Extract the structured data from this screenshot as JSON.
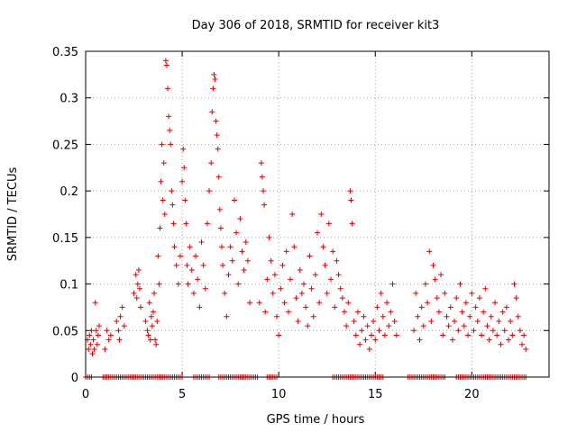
{
  "chart_data": {
    "type": "scatter",
    "title": "Day 306 of 2018, SRMTID for receiver kit3",
    "xlabel": "GPS time / hours",
    "ylabel": "SRMTID / TECUs",
    "xlim": [
      0,
      24
    ],
    "ylim": [
      0,
      0.35
    ],
    "x_ticks": [
      0,
      5,
      10,
      15,
      20
    ],
    "x_tick_labels": [
      "0",
      "5",
      "10",
      "15",
      "20"
    ],
    "y_ticks": [
      0,
      0.05,
      0.1,
      0.15,
      0.2,
      0.25,
      0.3,
      0.35
    ],
    "y_tick_labels": [
      "0",
      "0.05",
      "0.1",
      "0.15",
      "0.2",
      "0.25",
      "0.3",
      "0.35"
    ],
    "grid": true,
    "marker": "plus",
    "color": "#e00000",
    "series": [
      {
        "name": "SRMTID",
        "points": [
          [
            0.1,
            0.04
          ],
          [
            0.15,
            0.03
          ],
          [
            0.2,
            0.045
          ],
          [
            0.25,
            0.035
          ],
          [
            0.3,
            0.05
          ],
          [
            0.35,
            0.025
          ],
          [
            0.4,
            0.04
          ],
          [
            0.45,
            0.03
          ],
          [
            0.5,
            0.08
          ],
          [
            0.55,
            0.05
          ],
          [
            0.6,
            0.035
          ],
          [
            0.65,
            0.045
          ],
          [
            0.7,
            0.055
          ],
          [
            1.0,
            0.03
          ],
          [
            1.1,
            0.05
          ],
          [
            1.2,
            0.04
          ],
          [
            1.3,
            0.045
          ],
          [
            1.6,
            0.06
          ],
          [
            1.7,
            0.05
          ],
          [
            1.8,
            0.065
          ],
          [
            1.9,
            0.075
          ],
          [
            2.0,
            0.055
          ],
          [
            1.75,
            0.04
          ],
          [
            2.5,
            0.09
          ],
          [
            2.6,
            0.11
          ],
          [
            2.65,
            0.085
          ],
          [
            2.7,
            0.1
          ],
          [
            2.75,
            0.115
          ],
          [
            2.8,
            0.095
          ],
          [
            2.85,
            0.075
          ],
          [
            3.1,
            0.06
          ],
          [
            3.2,
            0.05
          ],
          [
            3.25,
            0.045
          ],
          [
            3.3,
            0.08
          ],
          [
            3.35,
            0.04
          ],
          [
            3.4,
            0.065
          ],
          [
            3.45,
            0.055
          ],
          [
            3.5,
            0.07
          ],
          [
            3.55,
            0.09
          ],
          [
            3.6,
            0.04
          ],
          [
            3.65,
            0.035
          ],
          [
            3.7,
            0.06
          ],
          [
            3.75,
            0.13
          ],
          [
            3.8,
            0.1
          ],
          [
            3.85,
            0.16
          ],
          [
            3.9,
            0.21
          ],
          [
            3.95,
            0.25
          ],
          [
            4.0,
            0.19
          ],
          [
            4.05,
            0.23
          ],
          [
            4.1,
            0.175
          ],
          [
            4.15,
            0.34
          ],
          [
            4.2,
            0.335
          ],
          [
            4.25,
            0.31
          ],
          [
            4.3,
            0.28
          ],
          [
            4.35,
            0.265
          ],
          [
            4.4,
            0.25
          ],
          [
            4.45,
            0.2
          ],
          [
            4.5,
            0.185
          ],
          [
            4.55,
            0.165
          ],
          [
            4.6,
            0.14
          ],
          [
            4.7,
            0.12
          ],
          [
            4.8,
            0.1
          ],
          [
            4.9,
            0.13
          ],
          [
            5.0,
            0.21
          ],
          [
            5.05,
            0.245
          ],
          [
            5.1,
            0.225
          ],
          [
            5.15,
            0.19
          ],
          [
            5.2,
            0.165
          ],
          [
            5.25,
            0.12
          ],
          [
            5.3,
            0.1
          ],
          [
            5.4,
            0.14
          ],
          [
            5.5,
            0.115
          ],
          [
            5.6,
            0.09
          ],
          [
            5.7,
            0.13
          ],
          [
            5.8,
            0.105
          ],
          [
            5.9,
            0.075
          ],
          [
            6.0,
            0.145
          ],
          [
            6.1,
            0.12
          ],
          [
            6.2,
            0.095
          ],
          [
            6.3,
            0.165
          ],
          [
            6.4,
            0.2
          ],
          [
            6.5,
            0.23
          ],
          [
            6.55,
            0.285
          ],
          [
            6.6,
            0.31
          ],
          [
            6.65,
            0.325
          ],
          [
            6.7,
            0.32
          ],
          [
            6.75,
            0.275
          ],
          [
            6.8,
            0.26
          ],
          [
            6.85,
            0.245
          ],
          [
            6.9,
            0.215
          ],
          [
            6.95,
            0.18
          ],
          [
            7.0,
            0.16
          ],
          [
            7.05,
            0.14
          ],
          [
            7.1,
            0.12
          ],
          [
            7.2,
            0.09
          ],
          [
            7.3,
            0.065
          ],
          [
            7.4,
            0.11
          ],
          [
            7.5,
            0.14
          ],
          [
            7.6,
            0.125
          ],
          [
            7.7,
            0.19
          ],
          [
            7.8,
            0.155
          ],
          [
            7.9,
            0.1
          ],
          [
            8.0,
            0.17
          ],
          [
            8.1,
            0.135
          ],
          [
            8.2,
            0.115
          ],
          [
            8.3,
            0.145
          ],
          [
            8.4,
            0.125
          ],
          [
            8.5,
            0.08
          ],
          [
            9.0,
            0.08
          ],
          [
            9.1,
            0.23
          ],
          [
            9.15,
            0.215
          ],
          [
            9.2,
            0.2
          ],
          [
            9.25,
            0.185
          ],
          [
            9.3,
            0.07
          ],
          [
            9.4,
            0.105
          ],
          [
            9.5,
            0.15
          ],
          [
            9.6,
            0.125
          ],
          [
            9.7,
            0.09
          ],
          [
            9.8,
            0.11
          ],
          [
            9.9,
            0.065
          ],
          [
            10.0,
            0.045
          ],
          [
            10.1,
            0.095
          ],
          [
            10.2,
            0.12
          ],
          [
            10.3,
            0.08
          ],
          [
            10.4,
            0.135
          ],
          [
            10.5,
            0.07
          ],
          [
            10.6,
            0.105
          ],
          [
            10.7,
            0.175
          ],
          [
            10.8,
            0.14
          ],
          [
            10.9,
            0.085
          ],
          [
            11.0,
            0.06
          ],
          [
            11.1,
            0.115
          ],
          [
            11.2,
            0.09
          ],
          [
            11.3,
            0.1
          ],
          [
            11.4,
            0.075
          ],
          [
            11.5,
            0.055
          ],
          [
            11.6,
            0.13
          ],
          [
            11.7,
            0.095
          ],
          [
            11.8,
            0.065
          ],
          [
            11.9,
            0.11
          ],
          [
            12.0,
            0.155
          ],
          [
            12.1,
            0.08
          ],
          [
            12.2,
            0.175
          ],
          [
            12.3,
            0.14
          ],
          [
            12.4,
            0.12
          ],
          [
            12.5,
            0.09
          ],
          [
            12.6,
            0.165
          ],
          [
            12.7,
            0.105
          ],
          [
            12.8,
            0.135
          ],
          [
            12.9,
            0.075
          ],
          [
            13.0,
            0.125
          ],
          [
            13.1,
            0.11
          ],
          [
            13.2,
            0.095
          ],
          [
            13.3,
            0.085
          ],
          [
            13.4,
            0.07
          ],
          [
            13.5,
            0.055
          ],
          [
            13.6,
            0.08
          ],
          [
            13.7,
            0.2
          ],
          [
            13.75,
            0.19
          ],
          [
            13.8,
            0.165
          ],
          [
            13.9,
            0.06
          ],
          [
            14.0,
            0.045
          ],
          [
            14.1,
            0.07
          ],
          [
            14.2,
            0.035
          ],
          [
            14.3,
            0.05
          ],
          [
            14.4,
            0.065
          ],
          [
            14.5,
            0.04
          ],
          [
            14.6,
            0.055
          ],
          [
            14.7,
            0.03
          ],
          [
            14.8,
            0.045
          ],
          [
            14.9,
            0.06
          ],
          [
            15.0,
            0.04
          ],
          [
            15.1,
            0.075
          ],
          [
            15.2,
            0.05
          ],
          [
            15.3,
            0.09
          ],
          [
            15.4,
            0.065
          ],
          [
            15.5,
            0.045
          ],
          [
            15.6,
            0.08
          ],
          [
            15.7,
            0.055
          ],
          [
            15.8,
            0.07
          ],
          [
            15.9,
            0.1
          ],
          [
            16.0,
            0.06
          ],
          [
            16.1,
            0.045
          ],
          [
            17.0,
            0.05
          ],
          [
            17.1,
            0.09
          ],
          [
            17.2,
            0.065
          ],
          [
            17.3,
            0.04
          ],
          [
            17.4,
            0.075
          ],
          [
            17.5,
            0.055
          ],
          [
            17.6,
            0.1
          ],
          [
            17.7,
            0.08
          ],
          [
            17.8,
            0.135
          ],
          [
            17.9,
            0.06
          ],
          [
            18.0,
            0.12
          ],
          [
            18.1,
            0.105
          ],
          [
            18.2,
            0.085
          ],
          [
            18.3,
            0.07
          ],
          [
            18.4,
            0.11
          ],
          [
            18.5,
            0.045
          ],
          [
            18.6,
            0.09
          ],
          [
            18.7,
            0.065
          ],
          [
            18.8,
            0.055
          ],
          [
            18.9,
            0.075
          ],
          [
            19.0,
            0.04
          ],
          [
            19.1,
            0.06
          ],
          [
            19.2,
            0.085
          ],
          [
            19.3,
            0.05
          ],
          [
            19.4,
            0.1
          ],
          [
            19.5,
            0.07
          ],
          [
            19.6,
            0.055
          ],
          [
            19.7,
            0.08
          ],
          [
            19.8,
            0.045
          ],
          [
            19.9,
            0.065
          ],
          [
            20.0,
            0.09
          ],
          [
            20.1,
            0.05
          ],
          [
            20.2,
            0.075
          ],
          [
            20.3,
            0.06
          ],
          [
            20.4,
            0.085
          ],
          [
            20.5,
            0.045
          ],
          [
            20.6,
            0.07
          ],
          [
            20.7,
            0.095
          ],
          [
            20.8,
            0.055
          ],
          [
            20.9,
            0.04
          ],
          [
            21.0,
            0.065
          ],
          [
            21.1,
            0.05
          ],
          [
            21.2,
            0.08
          ],
          [
            21.3,
            0.045
          ],
          [
            21.4,
            0.06
          ],
          [
            21.5,
            0.035
          ],
          [
            21.6,
            0.07
          ],
          [
            21.7,
            0.05
          ],
          [
            21.8,
            0.075
          ],
          [
            21.9,
            0.04
          ],
          [
            22.0,
            0.06
          ],
          [
            22.1,
            0.045
          ],
          [
            22.2,
            0.1
          ],
          [
            22.3,
            0.085
          ],
          [
            22.4,
            0.065
          ],
          [
            22.5,
            0.05
          ],
          [
            22.6,
            0.035
          ],
          [
            22.7,
            0.045
          ],
          [
            22.8,
            0.03
          ]
        ],
        "zero_ranges": [
          [
            0.0,
            0.3
          ],
          [
            0.9,
            2.1
          ],
          [
            2.2,
            5.0
          ],
          [
            5.6,
            6.4
          ],
          [
            6.9,
            8.9
          ],
          [
            9.4,
            9.9
          ],
          [
            12.8,
            15.4
          ],
          [
            16.7,
            18.6
          ],
          [
            19.2,
            22.8
          ]
        ],
        "zero_step": 0.1
      }
    ]
  }
}
